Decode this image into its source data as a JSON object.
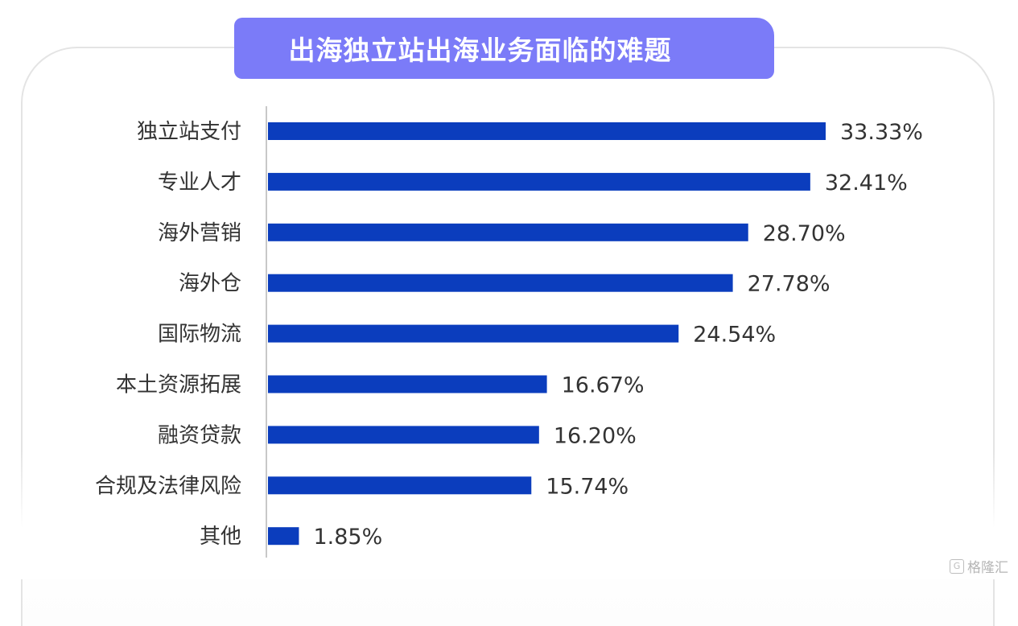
{
  "title": "出海独立站出海业务面临的难题",
  "watermark": {
    "icon": "gelonghui-logo-icon",
    "text": "格隆汇"
  },
  "colors": {
    "bar": "#0b3dbd",
    "title_bg": "#7b7bf8"
  },
  "chart_data": {
    "type": "bar",
    "orientation": "horizontal",
    "title": "出海独立站出海业务面临的难题",
    "xlabel": "",
    "ylabel": "",
    "categories": [
      "独立站支付",
      "专业人才",
      "海外营销",
      "海外仓",
      "国际物流",
      "本土资源拓展",
      "融资贷款",
      "合规及法律风险",
      "其他"
    ],
    "values": [
      33.33,
      32.41,
      28.7,
      27.78,
      24.54,
      16.67,
      16.2,
      15.74,
      1.85
    ],
    "value_labels": [
      "33.33%",
      "32.41%",
      "28.70%",
      "27.78%",
      "24.54%",
      "16.67%",
      "16.20%",
      "15.74%",
      "1.85%"
    ],
    "unit": "%",
    "xlim": [
      0,
      33.33
    ],
    "grid": false,
    "legend": "none"
  }
}
